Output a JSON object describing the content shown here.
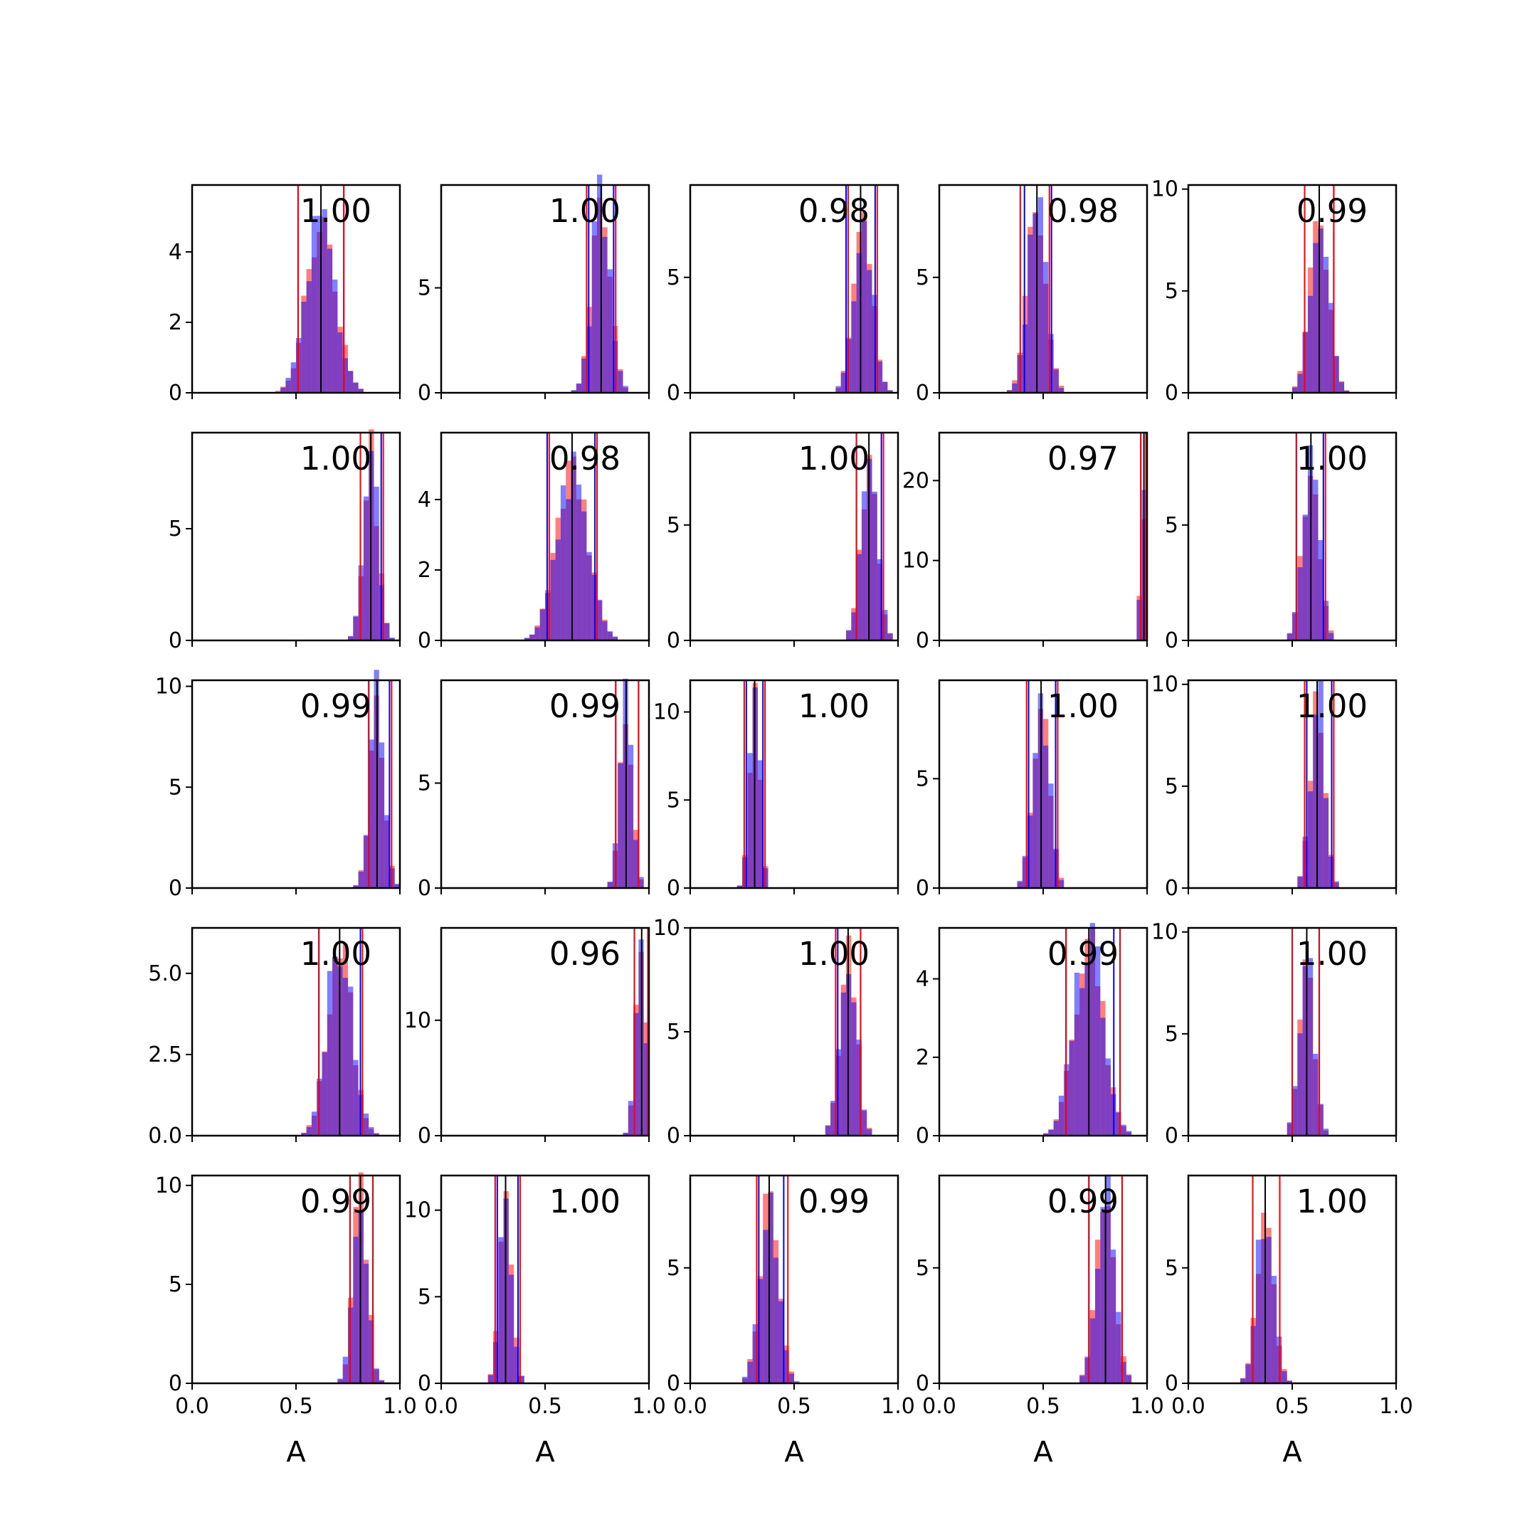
{
  "chart_data": {
    "type": "histogram-grid",
    "rows": 5,
    "cols": 5,
    "xlim": [
      0,
      1
    ],
    "xticks": [
      0.0,
      0.5,
      1.0
    ],
    "xtick_labels": [
      "0.0",
      "0.5",
      "1.0"
    ],
    "xlabel": "A",
    "bin_width": 0.025,
    "colors": {
      "red": "#ff0000",
      "blue": "#0000ff",
      "overlap": "#7f3fbf",
      "median": "#000000"
    },
    "bar_alpha": 0.5,
    "panels": [
      {
        "ann": "1.00",
        "ylim": [
          0,
          5.9
        ],
        "yticks": [
          0,
          2,
          4
        ],
        "ytick_labels": [
          "0",
          "2",
          "4"
        ],
        "center": 0.62,
        "sd": 0.07,
        "peak": 5.0,
        "red_lines": [
          0.51,
          0.73
        ],
        "blue_lines": [
          0.51,
          0.73
        ],
        "median": 0.62
      },
      {
        "ann": "1.00",
        "ylim": [
          0,
          9.9
        ],
        "yticks": [
          0,
          5
        ],
        "ytick_labels": [
          "0",
          "5"
        ],
        "center": 0.77,
        "sd": 0.045,
        "peak": 9.0,
        "red_lines": [
          0.7,
          0.84
        ],
        "blue_lines": [
          0.71,
          0.83
        ],
        "median": 0.77
      },
      {
        "ann": "0.98",
        "ylim": [
          0,
          9.0
        ],
        "yticks": [
          0,
          5
        ],
        "ytick_labels": [
          "0",
          "5"
        ],
        "center": 0.83,
        "sd": 0.045,
        "peak": 8.0,
        "red_lines": [
          0.76,
          0.9
        ],
        "blue_lines": [
          0.75,
          0.89
        ],
        "median": 0.82
      },
      {
        "ann": "0.98",
        "ylim": [
          0,
          9.0
        ],
        "yticks": [
          0,
          5
        ],
        "ytick_labels": [
          "0",
          "5"
        ],
        "center": 0.47,
        "sd": 0.045,
        "peak": 8.5,
        "red_lines": [
          0.39,
          0.53
        ],
        "blue_lines": [
          0.41,
          0.54
        ],
        "median": 0.47
      },
      {
        "ann": "0.99",
        "ylim": [
          0,
          10.2
        ],
        "yticks": [
          0,
          5,
          10
        ],
        "ytick_labels": [
          "0",
          "5",
          "10"
        ],
        "center": 0.63,
        "sd": 0.045,
        "peak": 9.5,
        "red_lines": [
          0.56,
          0.7
        ],
        "blue_lines": [
          0.56,
          0.7
        ],
        "median": 0.63
      },
      {
        "ann": "1.00",
        "ylim": [
          0,
          9.3
        ],
        "yticks": [
          0,
          5
        ],
        "ytick_labels": [
          "0",
          "5"
        ],
        "center": 0.86,
        "sd": 0.035,
        "peak": 8.5,
        "red_lines": [
          0.81,
          0.92
        ],
        "blue_lines": [
          0.81,
          0.91
        ],
        "median": 0.86
      },
      {
        "ann": "0.98",
        "ylim": [
          0,
          5.9
        ],
        "yticks": [
          0,
          2,
          4
        ],
        "ytick_labels": [
          "0",
          "2",
          "4"
        ],
        "center": 0.63,
        "sd": 0.075,
        "peak": 5.0,
        "red_lines": [
          0.52,
          0.75
        ],
        "blue_lines": [
          0.51,
          0.74
        ],
        "median": 0.63
      },
      {
        "ann": "1.00",
        "ylim": [
          0,
          9.0
        ],
        "yticks": [
          0,
          5
        ],
        "ytick_labels": [
          "0",
          "5"
        ],
        "center": 0.86,
        "sd": 0.04,
        "peak": 8.0,
        "red_lines": [
          0.8,
          0.93
        ],
        "blue_lines": [
          0.8,
          0.92
        ],
        "median": 0.86
      },
      {
        "ann": "0.97",
        "ylim": [
          0,
          26
        ],
        "yticks": [
          0,
          10,
          20
        ],
        "ytick_labels": [
          "0",
          "10",
          "20"
        ],
        "center": 0.98,
        "sd": 0.01,
        "peak": 24.0,
        "red_lines": [
          0.97,
          0.995
        ],
        "blue_lines": [
          0.97,
          0.995
        ],
        "median": 0.985
      },
      {
        "ann": "1.00",
        "ylim": [
          0,
          9.0
        ],
        "yticks": [
          0,
          5
        ],
        "ytick_labels": [
          "0",
          "5"
        ],
        "center": 0.59,
        "sd": 0.04,
        "peak": 8.0,
        "red_lines": [
          0.52,
          0.66
        ],
        "blue_lines": [
          0.52,
          0.65
        ],
        "median": 0.59
      },
      {
        "ann": "0.99",
        "ylim": [
          0,
          10.3
        ],
        "yticks": [
          0,
          5,
          10
        ],
        "ytick_labels": [
          "0",
          "5",
          "10"
        ],
        "center": 0.89,
        "sd": 0.035,
        "peak": 9.5,
        "red_lines": [
          0.85,
          0.96
        ],
        "blue_lines": [
          0.85,
          0.95
        ],
        "median": 0.89
      },
      {
        "ann": "0.99",
        "ylim": [
          0,
          9.9
        ],
        "yticks": [
          0,
          5
        ],
        "ytick_labels": [
          "0",
          "5"
        ],
        "center": 0.89,
        "sd": 0.03,
        "peak": 9.0,
        "red_lines": [
          0.84,
          0.95
        ],
        "blue_lines": [
          0.84,
          0.95
        ],
        "median": 0.89
      },
      {
        "ann": "1.00",
        "ylim": [
          0,
          11.8
        ],
        "yticks": [
          0,
          5,
          10
        ],
        "ytick_labels": [
          "0",
          "5",
          "10"
        ],
        "center": 0.31,
        "sd": 0.025,
        "peak": 11.0,
        "red_lines": [
          0.26,
          0.36
        ],
        "blue_lines": [
          0.27,
          0.35
        ],
        "median": 0.31
      },
      {
        "ann": "1.00",
        "ylim": [
          0,
          9.5
        ],
        "yticks": [
          0,
          5
        ],
        "ytick_labels": [
          "0",
          "5"
        ],
        "center": 0.49,
        "sd": 0.04,
        "peak": 8.5,
        "red_lines": [
          0.42,
          0.57
        ],
        "blue_lines": [
          0.43,
          0.56
        ],
        "median": 0.49
      },
      {
        "ann": "1.00",
        "ylim": [
          0,
          10.2
        ],
        "yticks": [
          0,
          5,
          10
        ],
        "ytick_labels": [
          "0",
          "5",
          "10"
        ],
        "center": 0.62,
        "sd": 0.035,
        "peak": 9.5,
        "red_lines": [
          0.56,
          0.7
        ],
        "blue_lines": [
          0.57,
          0.69
        ],
        "median": 0.62
      },
      {
        "ann": "1.00",
        "ylim": [
          0,
          6.4
        ],
        "yticks": [
          0,
          2.5,
          5
        ],
        "ytick_labels": [
          "0.0",
          "2.5",
          "5.0"
        ],
        "center": 0.71,
        "sd": 0.06,
        "peak": 6.0,
        "red_lines": [
          0.61,
          0.82
        ],
        "blue_lines": [
          0.61,
          0.81
        ],
        "median": 0.71
      },
      {
        "ann": "0.96",
        "ylim": [
          0,
          18
        ],
        "yticks": [
          0,
          10
        ],
        "ytick_labels": [
          "0",
          "10"
        ],
        "center": 0.96,
        "sd": 0.025,
        "peak": 17.0,
        "red_lines": [
          0.93,
          0.995
        ],
        "blue_lines": [
          0.93,
          0.995
        ],
        "median": 0.965
      },
      {
        "ann": "1.00",
        "ylim": [
          0,
          10.0
        ],
        "yticks": [
          0,
          5,
          10
        ],
        "ytick_labels": [
          "0",
          "5",
          "10"
        ],
        "center": 0.76,
        "sd": 0.04,
        "peak": 9.3,
        "red_lines": [
          0.7,
          0.82
        ],
        "blue_lines": [
          0.71,
          0.82
        ],
        "median": 0.76
      },
      {
        "ann": "0.99",
        "ylim": [
          0,
          5.3
        ],
        "yticks": [
          0,
          2,
          4
        ],
        "ytick_labels": [
          "0",
          "2",
          "4"
        ],
        "center": 0.72,
        "sd": 0.07,
        "peak": 5.0,
        "red_lines": [
          0.61,
          0.87
        ],
        "blue_lines": [
          0.61,
          0.84
        ],
        "median": 0.72
      },
      {
        "ann": "1.00",
        "ylim": [
          0,
          10.2
        ],
        "yticks": [
          0,
          5,
          10
        ],
        "ytick_labels": [
          "0",
          "5",
          "10"
        ],
        "center": 0.57,
        "sd": 0.035,
        "peak": 9.5,
        "red_lines": [
          0.5,
          0.63
        ],
        "blue_lines": [
          0.5,
          0.63
        ],
        "median": 0.57
      },
      {
        "ann": "0.99",
        "ylim": [
          0,
          10.5
        ],
        "yticks": [
          0,
          5,
          10
        ],
        "ytick_labels": [
          "0",
          "5",
          "10"
        ],
        "center": 0.81,
        "sd": 0.035,
        "peak": 9.8,
        "red_lines": [
          0.76,
          0.87
        ],
        "blue_lines": [
          0.76,
          0.87
        ],
        "median": 0.81
      },
      {
        "ann": "1.00",
        "ylim": [
          0,
          12.0
        ],
        "yticks": [
          0,
          5,
          10
        ],
        "ytick_labels": [
          "0",
          "5",
          "10"
        ],
        "center": 0.31,
        "sd": 0.03,
        "peak": 11.0,
        "red_lines": [
          0.26,
          0.38
        ],
        "blue_lines": [
          0.27,
          0.37
        ],
        "median": 0.31
      },
      {
        "ann": "0.99",
        "ylim": [
          0,
          9.0
        ],
        "yticks": [
          0,
          5
        ],
        "ytick_labels": [
          "0",
          "5"
        ],
        "center": 0.38,
        "sd": 0.045,
        "peak": 8.0,
        "red_lines": [
          0.32,
          0.47
        ],
        "blue_lines": [
          0.33,
          0.45
        ],
        "median": 0.38
      },
      {
        "ann": "0.99",
        "ylim": [
          0,
          9.0
        ],
        "yticks": [
          0,
          5
        ],
        "ytick_labels": [
          "0",
          "5"
        ],
        "center": 0.8,
        "sd": 0.045,
        "peak": 8.0,
        "red_lines": [
          0.72,
          0.88
        ],
        "blue_lines": [
          0.72,
          0.88
        ],
        "median": 0.8
      },
      {
        "ann": "1.00",
        "ylim": [
          0,
          9.0
        ],
        "yticks": [
          0,
          5
        ],
        "ytick_labels": [
          "0",
          "5"
        ],
        "center": 0.37,
        "sd": 0.04,
        "peak": 8.0,
        "red_lines": [
          0.31,
          0.44
        ],
        "blue_lines": [
          0.31,
          0.44
        ],
        "median": 0.37
      }
    ]
  }
}
